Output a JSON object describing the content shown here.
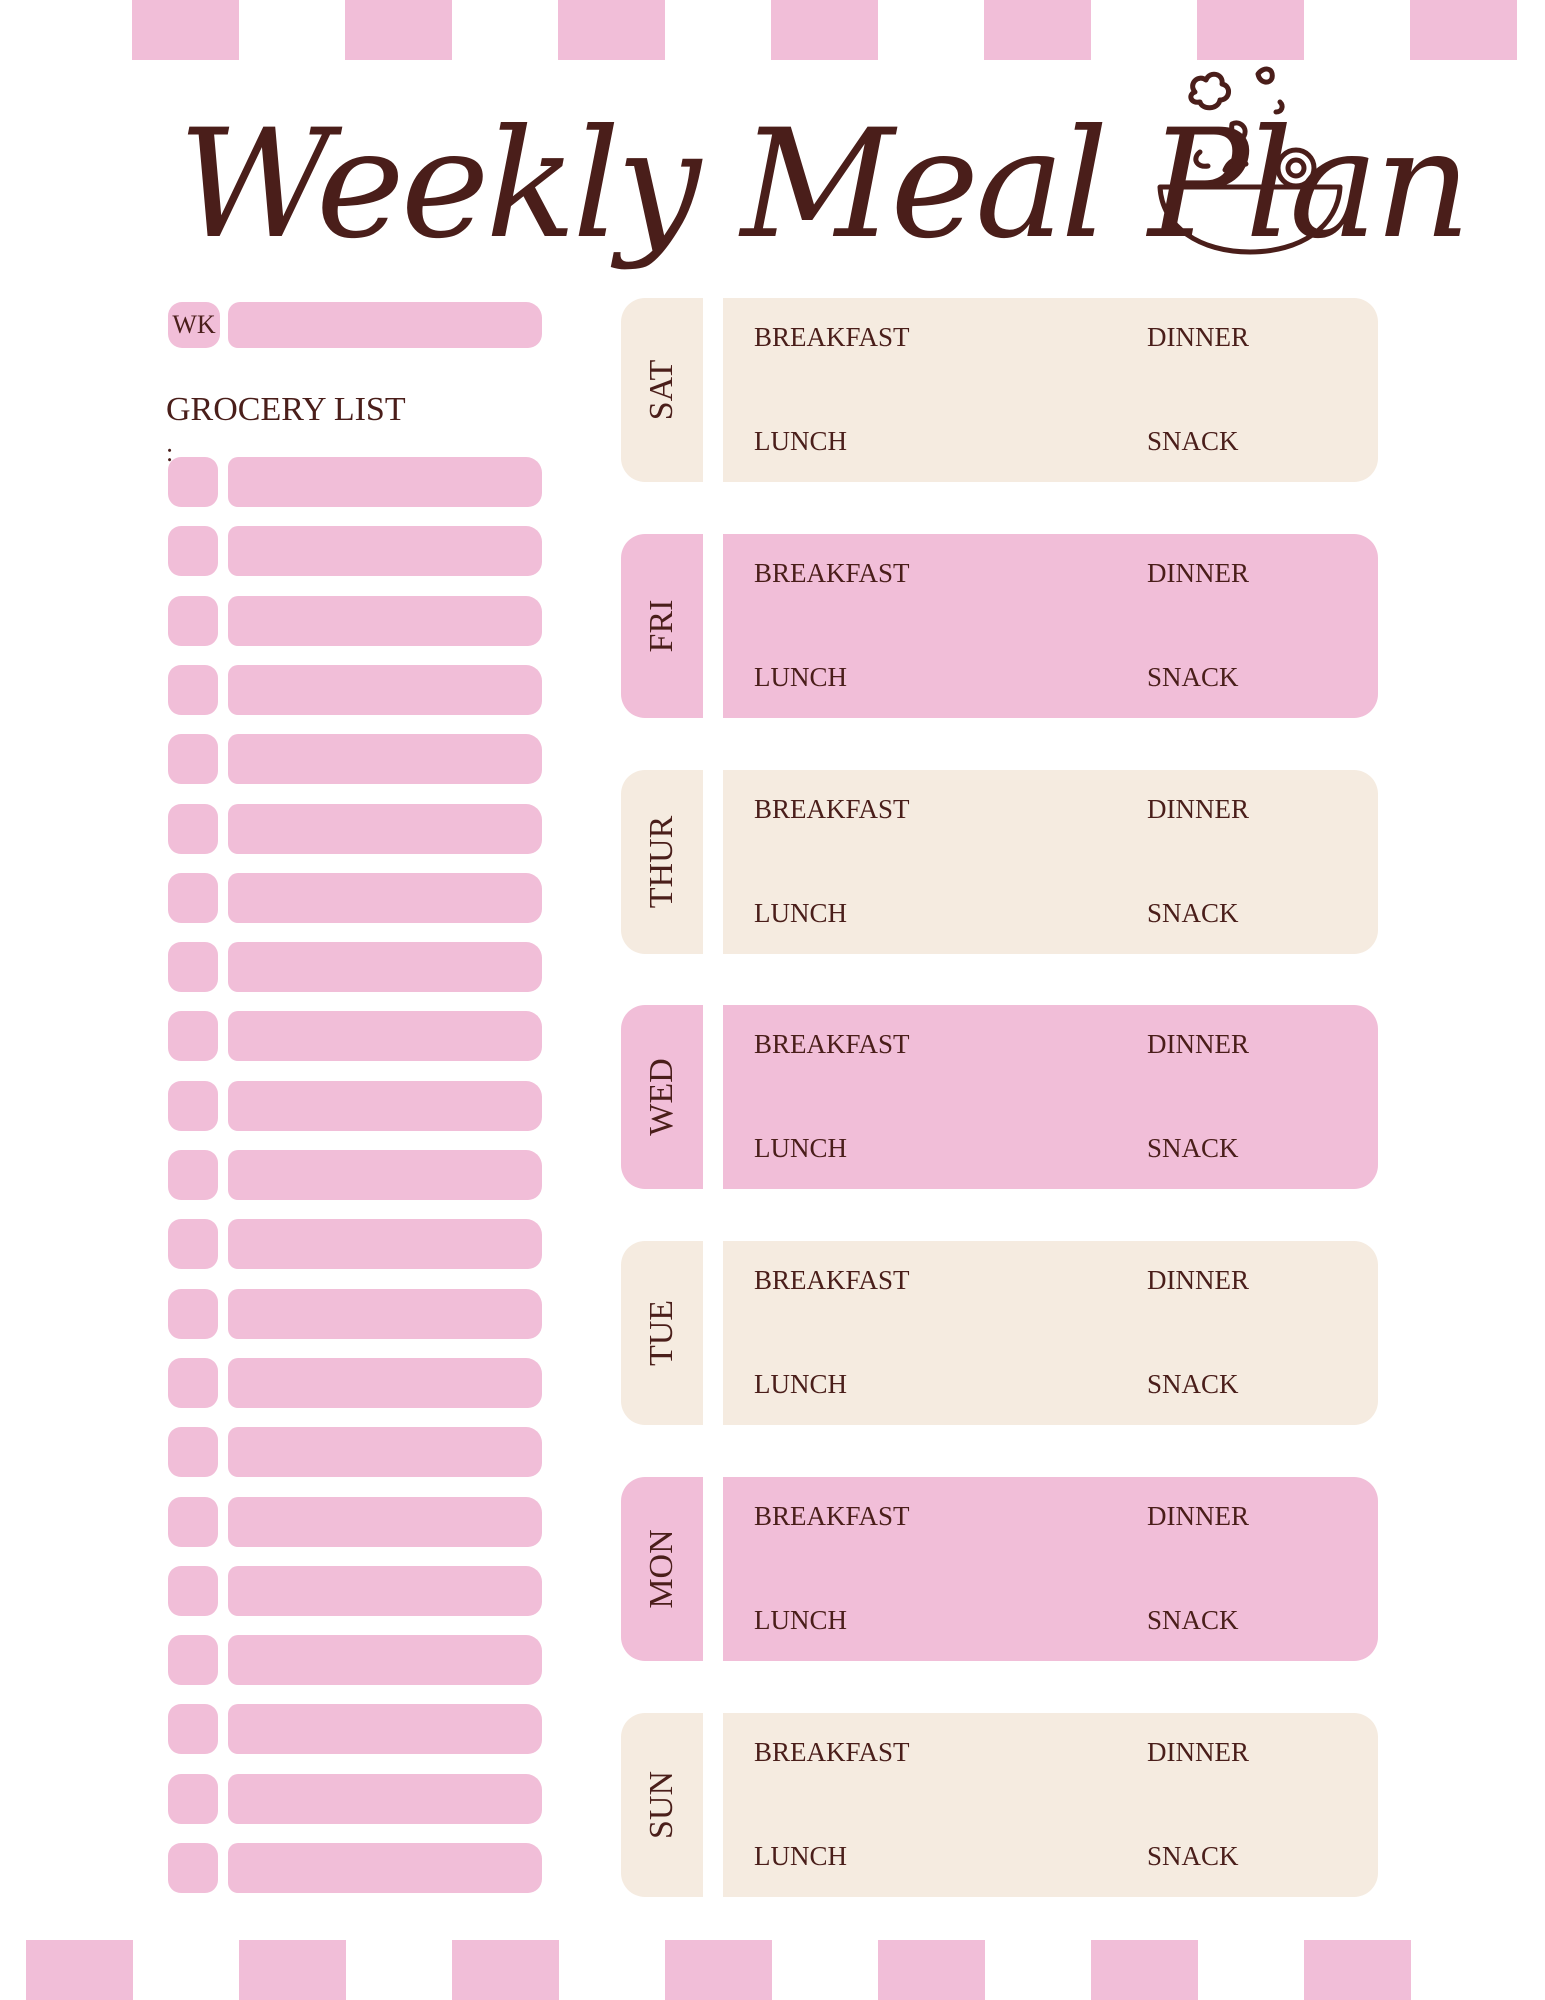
{
  "title": "Weekly Meal Plan",
  "icons": {
    "header": "salad-bowl-icon"
  },
  "colors": {
    "pink": "#f1bed8",
    "cream": "#f5ebe0",
    "ink": "#4a1e1a"
  },
  "week": {
    "label": "WK"
  },
  "grocery": {
    "title": "GROCERY LIST",
    "colon": ":",
    "row_count": 21
  },
  "days": [
    {
      "label": "SAT",
      "theme": "cream",
      "meals": [
        "BREAKFAST",
        "DINNER",
        "LUNCH",
        "SNACK"
      ]
    },
    {
      "label": "FRI",
      "theme": "pink",
      "meals": [
        "BREAKFAST",
        "DINNER",
        "LUNCH",
        "SNACK"
      ]
    },
    {
      "label": "THUR",
      "theme": "cream",
      "meals": [
        "BREAKFAST",
        "DINNER",
        "LUNCH",
        "SNACK"
      ]
    },
    {
      "label": "WED",
      "theme": "pink",
      "meals": [
        "BREAKFAST",
        "DINNER",
        "LUNCH",
        "SNACK"
      ]
    },
    {
      "label": "TUE",
      "theme": "cream",
      "meals": [
        "BREAKFAST",
        "DINNER",
        "LUNCH",
        "SNACK"
      ]
    },
    {
      "label": "MON",
      "theme": "pink",
      "meals": [
        "BREAKFAST",
        "DINNER",
        "LUNCH",
        "SNACK"
      ]
    },
    {
      "label": "SUN",
      "theme": "cream",
      "meals": [
        "BREAKFAST",
        "DINNER",
        "LUNCH",
        "SNACK"
      ]
    }
  ]
}
